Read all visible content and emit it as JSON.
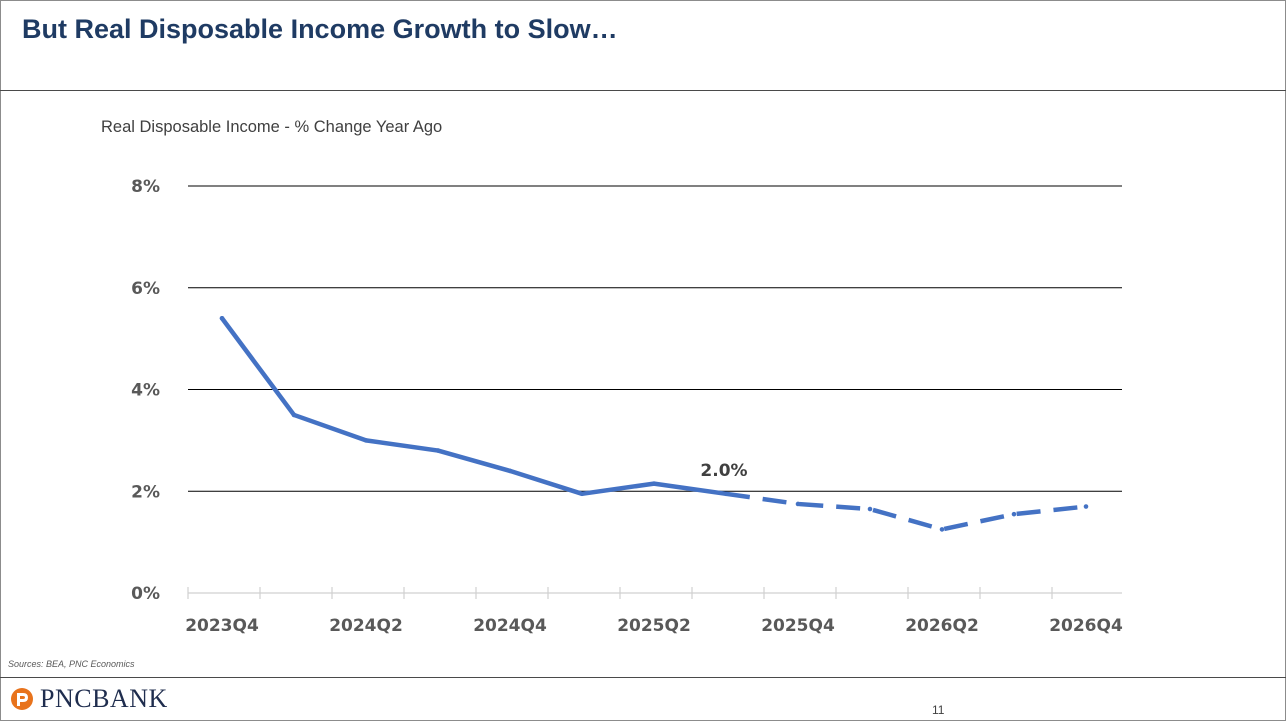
{
  "slide": {
    "title": "But Real Disposable Income Growth to Slow…",
    "source": "Sources: BEA, PNC Economics",
    "logo_text": "PNCBANK",
    "page_number": "11"
  },
  "colors": {
    "title": "#1f3b63",
    "line": "#4472c4",
    "grid": "#000000",
    "logo_orange": "#e8731c",
    "logo_navy": "#1f2d4e"
  },
  "chart_data": {
    "type": "line",
    "title": "Real Disposable Income - % Change Year Ago",
    "xlabel": "",
    "ylabel": "",
    "x": [
      "2023Q4",
      "2024Q1",
      "2024Q2",
      "2024Q3",
      "2024Q4",
      "2025Q1",
      "2025Q2",
      "2025Q3",
      "2025Q4",
      "2026Q1",
      "2026Q2",
      "2026Q3",
      "2026Q4"
    ],
    "x_tick_labels": [
      "2023Q4",
      "2024Q2",
      "2024Q4",
      "2025Q2",
      "2025Q4",
      "2026Q2",
      "2026Q4"
    ],
    "series": [
      {
        "values": [
          5.4,
          3.5,
          3.0,
          2.8,
          2.4,
          1.95,
          2.15,
          1.95,
          1.75,
          1.65,
          1.25,
          1.55,
          1.7
        ],
        "style_solid_through_index": 7,
        "style_after": "dashed"
      }
    ],
    "annotations": [
      {
        "x": "2025Q3",
        "text": "2.0%"
      }
    ],
    "ylim": [
      0,
      8
    ],
    "y_ticks": [
      0,
      2,
      4,
      6,
      8
    ],
    "y_tick_format": "%",
    "grid": "horizontal",
    "legend": "none"
  }
}
